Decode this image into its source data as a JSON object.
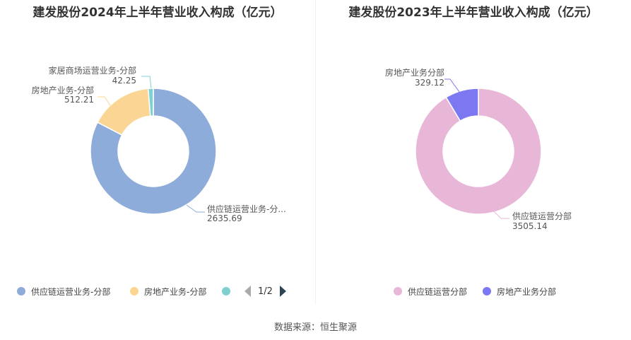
{
  "source": "数据来源：恒生聚源",
  "pager": {
    "text": "1/2"
  },
  "chart_data": [
    {
      "type": "pie",
      "donut": true,
      "title": "建发股份2024年上半年营业收入构成（亿元）",
      "categories": [
        "供应链运营业务-分部",
        "房地产业务-分部",
        "家居商场运营业务-分部"
      ],
      "series": [
        {
          "values": [
            2635.69,
            512.21,
            42.25
          ]
        }
      ],
      "slice_labels": [
        "供应链运营业务-分...",
        "房地产业务-分部",
        "家居商场运营业务-分部"
      ],
      "value_labels": [
        "2635.69",
        "512.21",
        "42.25"
      ],
      "colors": [
        "#8eacd9",
        "#fbd593",
        "#7fd0d0"
      ],
      "legend": {
        "position": "bottom",
        "entries": [
          "供应链运营业务-分部",
          "房地产业务-分部"
        ],
        "paged": true
      }
    },
    {
      "type": "pie",
      "donut": true,
      "title": "建发股份2023年上半年营业收入构成（亿元）",
      "categories": [
        "供应链运营分部",
        "房地产业务分部"
      ],
      "series": [
        {
          "values": [
            3505.14,
            329.12
          ]
        }
      ],
      "slice_labels": [
        "供应链运营分部",
        "房地产业务分部"
      ],
      "value_labels": [
        "3505.14",
        "329.12"
      ],
      "colors": [
        "#e8b7d8",
        "#7b78f2"
      ],
      "legend": {
        "position": "bottom",
        "entries": [
          "供应链运营分部",
          "房地产业务分部"
        ]
      }
    }
  ]
}
